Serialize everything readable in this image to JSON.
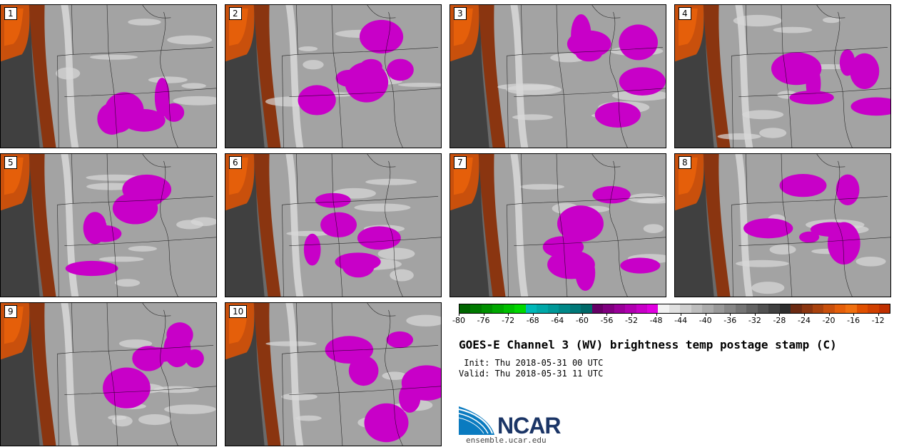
{
  "title": "GOES-E Channel 3 (WV) brightness temp postage stamp (C)",
  "init_label": " Init: Thu 2018-05-31 00 UTC",
  "valid_label": "Valid: Thu 2018-05-31 11 UTC",
  "logo_text": "NCAR",
  "site": "ensemble.ucar.edu",
  "panels": [
    {
      "label": "1"
    },
    {
      "label": "2"
    },
    {
      "label": "3"
    },
    {
      "label": "4"
    },
    {
      "label": "5"
    },
    {
      "label": "6"
    },
    {
      "label": "7"
    },
    {
      "label": "8"
    },
    {
      "label": "9"
    },
    {
      "label": "10"
    }
  ],
  "colorbar": {
    "min": -80,
    "max": -10,
    "ticks": [
      "-80",
      "-76",
      "-72",
      "-68",
      "-64",
      "-60",
      "-56",
      "-52",
      "-48",
      "-44",
      "-40",
      "-36",
      "-32",
      "-28",
      "-24",
      "-20",
      "-16",
      "-12"
    ],
    "colors": [
      "#006600",
      "#007a00",
      "#009000",
      "#00a800",
      "#00c000",
      "#00d800",
      "#00b8b8",
      "#00a8a8",
      "#009898",
      "#008888",
      "#007878",
      "#006868",
      "#660066",
      "#800080",
      "#990099",
      "#b000b0",
      "#c800c8",
      "#e000e0",
      "#f2f2f2",
      "#e0e0e0",
      "#cfcfcf",
      "#bdbdbd",
      "#ababab",
      "#999999",
      "#878787",
      "#757575",
      "#636363",
      "#515151",
      "#404040",
      "#2e2e2e",
      "#6b2a12",
      "#8a3510",
      "#a9420e",
      "#c9500c",
      "#e55f0a",
      "#f07010",
      "#e05000",
      "#d04000",
      "#c03000"
    ]
  }
}
